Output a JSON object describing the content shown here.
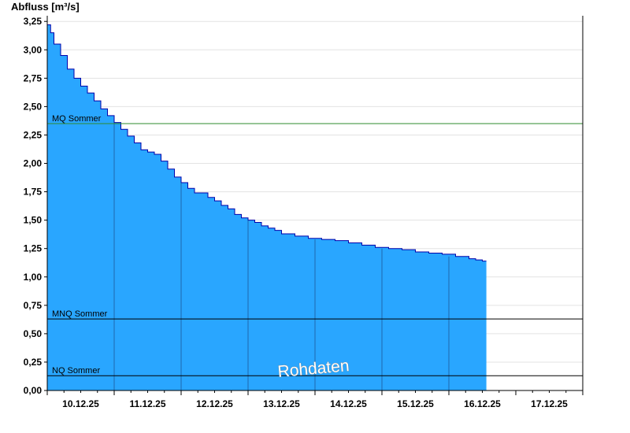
{
  "chart_data": {
    "type": "area",
    "ylabel": "Abfluss [m³/s]",
    "ylim": [
      0,
      3.3
    ],
    "yticks": [
      "0,00",
      "0,25",
      "0,50",
      "0,75",
      "1,00",
      "1,25",
      "1,50",
      "1,75",
      "2,00",
      "2,25",
      "2,50",
      "2,75",
      "3,00",
      "3,25"
    ],
    "ytick_values": [
      0,
      0.25,
      0.5,
      0.75,
      1.0,
      1.25,
      1.5,
      1.75,
      2.0,
      2.25,
      2.5,
      2.75,
      3.0,
      3.25
    ],
    "xticks": [
      "10.12.25",
      "11.12.25",
      "12.12.25",
      "13.12.25",
      "14.12.25",
      "15.12.25",
      "16.12.25",
      "17.12.25"
    ],
    "xlim_days": [
      9.5,
      17.5
    ],
    "grid": true,
    "colors": {
      "fill": "#29a6ff",
      "line": "#0000aa",
      "mq": "#2e8b2e",
      "ref": "#000000"
    },
    "series": [
      {
        "x_days": [
          9.5,
          9.55,
          9.6,
          9.7,
          9.8,
          9.9,
          10.0,
          10.1,
          10.2,
          10.3,
          10.4,
          10.5,
          10.6,
          10.7,
          10.8,
          10.9,
          11.0,
          11.1,
          11.2,
          11.3,
          11.4,
          11.5,
          11.6,
          11.7,
          11.8,
          11.9,
          12.0,
          12.1,
          12.2,
          12.3,
          12.4,
          12.5,
          12.6,
          12.7,
          12.8,
          12.9,
          13.0,
          13.2,
          13.4,
          13.6,
          13.8,
          14.0,
          14.2,
          14.4,
          14.6,
          14.8,
          15.0,
          15.2,
          15.4,
          15.6,
          15.8,
          15.9,
          16.0,
          16.06
        ],
        "values": [
          3.22,
          3.15,
          3.05,
          2.95,
          2.83,
          2.75,
          2.68,
          2.62,
          2.55,
          2.48,
          2.42,
          2.36,
          2.3,
          2.24,
          2.18,
          2.12,
          2.1,
          2.08,
          2.02,
          1.95,
          1.88,
          1.83,
          1.78,
          1.74,
          1.74,
          1.7,
          1.67,
          1.63,
          1.6,
          1.55,
          1.52,
          1.5,
          1.48,
          1.45,
          1.43,
          1.41,
          1.38,
          1.36,
          1.34,
          1.33,
          1.32,
          1.3,
          1.28,
          1.26,
          1.25,
          1.24,
          1.22,
          1.21,
          1.2,
          1.18,
          1.16,
          1.15,
          1.14,
          1.14
        ]
      }
    ],
    "reference_lines": [
      {
        "label": "MQ Sommer",
        "value": 2.35,
        "color": "#2e8b2e"
      },
      {
        "label": "MNQ Sommer",
        "value": 0.63,
        "color": "#000000"
      },
      {
        "label": "NQ Sommer",
        "value": 0.13,
        "color": "#000000"
      }
    ],
    "annotation": "Rohdaten"
  }
}
